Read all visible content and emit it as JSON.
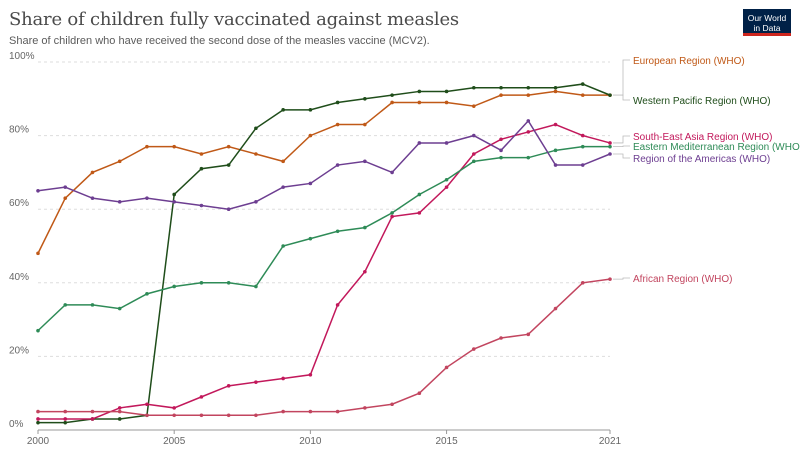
{
  "header": {
    "title": "Share of children fully vaccinated against measles",
    "subtitle": "Share of children who have received the second dose of the measles vaccine (MCV2).",
    "logo_line1": "Our World",
    "logo_line2": "in Data"
  },
  "chart_data": {
    "type": "line",
    "title": "Share of children fully vaccinated against measles",
    "subtitle": "Share of children who have received the second dose of the measles vaccine (MCV2).",
    "xlim": [
      2000,
      2021
    ],
    "ylim": [
      0,
      100
    ],
    "x_ticks": [
      "2000",
      "2005",
      "2010",
      "2015",
      "2021"
    ],
    "y_ticks": [
      "0%",
      "20%",
      "40%",
      "60%",
      "80%",
      "100%"
    ],
    "grid": true,
    "legend": "right-end labels",
    "x": [
      2000,
      2001,
      2002,
      2003,
      2004,
      2005,
      2006,
      2007,
      2008,
      2009,
      2010,
      2011,
      2012,
      2013,
      2014,
      2015,
      2016,
      2017,
      2018,
      2019,
      2020,
      2021
    ],
    "series": [
      {
        "name": "European Region (WHO)",
        "color": "#c05917",
        "values": [
          48,
          63,
          70,
          73,
          77,
          77,
          75,
          77,
          75,
          73,
          80,
          83,
          83,
          89,
          89,
          89,
          88,
          91,
          91,
          92,
          91,
          91
        ]
      },
      {
        "name": "Western Pacific Region (WHO)",
        "color": "#1f4d1a",
        "values": [
          2,
          2,
          3,
          3,
          4,
          64,
          71,
          72,
          82,
          87,
          87,
          89,
          90,
          91,
          92,
          92,
          93,
          93,
          93,
          93,
          94,
          91
        ]
      },
      {
        "name": "South-East Asia Region (WHO)",
        "color": "#c2185b",
        "values": [
          3,
          3,
          3,
          6,
          7,
          6,
          9,
          12,
          13,
          14,
          15,
          34,
          43,
          58,
          59,
          66,
          75,
          79,
          81,
          83,
          80,
          78
        ]
      },
      {
        "name": "Eastern Mediterranean Region (WHO)",
        "color": "#2e8b57",
        "values": [
          27,
          34,
          34,
          33,
          37,
          39,
          40,
          40,
          39,
          50,
          52,
          54,
          55,
          59,
          64,
          68,
          73,
          74,
          74,
          76,
          77,
          77
        ]
      },
      {
        "name": "Region of the Americas (WHO)",
        "color": "#6d3e91",
        "values": [
          65,
          66,
          63,
          62,
          63,
          62,
          61,
          60,
          62,
          66,
          67,
          72,
          73,
          70,
          78,
          78,
          80,
          76,
          84,
          72,
          72,
          75
        ]
      },
      {
        "name": "African Region (WHO)",
        "color": "#c2455f",
        "values": [
          5,
          5,
          5,
          5,
          4,
          4,
          4,
          4,
          4,
          5,
          5,
          5,
          6,
          7,
          10,
          17,
          22,
          25,
          26,
          33,
          40,
          41
        ]
      }
    ]
  }
}
